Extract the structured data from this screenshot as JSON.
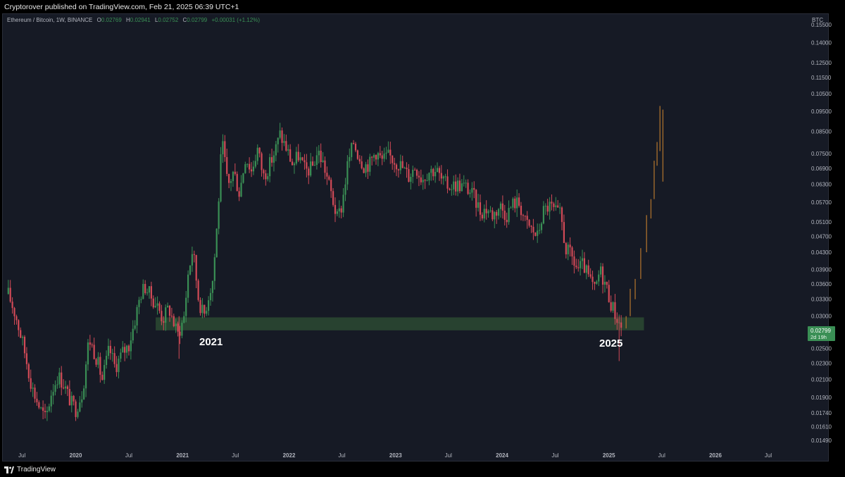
{
  "header": {
    "published": "Cryptorover published on TradingView.com, Feb 21, 2025 06:39 UTC+1"
  },
  "legend": {
    "symbol": "Ethereum / Bitcoin, 1W, BINANCE",
    "o_label": "O",
    "o_value": "0.02769",
    "h_label": "H",
    "h_value": "0.02941",
    "l_label": "L",
    "l_value": "0.02752",
    "c_label": "C",
    "c_value": "0.02799",
    "change": "+0.00031 (+1.12%)"
  },
  "price_axis": {
    "unit": "BTC",
    "ticks": [
      "0.15500",
      "0.14000",
      "0.12500",
      "0.11500",
      "0.10500",
      "0.09500",
      "0.08500",
      "0.07500",
      "0.06900",
      "0.06300",
      "0.05700",
      "0.05100",
      "0.04700",
      "0.04300",
      "0.03900",
      "0.03600",
      "0.03300",
      "0.03000",
      "0.02500",
      "0.02300",
      "0.02100",
      "0.01900",
      "0.01740",
      "0.01610",
      "0.01490"
    ],
    "current_price": "0.02799",
    "countdown": "2d 19h"
  },
  "time_axis": {
    "labels": [
      "Jul",
      "2020",
      "Jul",
      "2021",
      "Jul",
      "2022",
      "Jul",
      "2023",
      "Jul",
      "2024",
      "Jul",
      "2025",
      "Jul",
      "2026",
      "Jul"
    ]
  },
  "annotations": {
    "left_year": "2021",
    "right_year": "2025"
  },
  "footer": {
    "brand": "TradingView"
  },
  "colors": {
    "up": "#3a8f55",
    "down": "#d24a57",
    "projection": "#a06a2c",
    "support_zone": "#2b4a33",
    "background": "#161a25"
  },
  "chart_data": {
    "type": "candlestick",
    "title": "Ethereum / Bitcoin, 1W, BINANCE",
    "scale": "log",
    "ylim": [
      0.0145,
      0.158
    ],
    "x_range": [
      "2019-05",
      "2026-11"
    ],
    "support_zone": {
      "low": 0.0277,
      "high": 0.0298,
      "from": "2020-10",
      "to": "2025-05"
    },
    "path": [
      [
        "2019-05-15",
        0.034
      ],
      [
        "2019-06-10",
        0.03
      ],
      [
        "2019-07-05",
        0.0255
      ],
      [
        "2019-08-05",
        0.02
      ],
      [
        "2019-09-01",
        0.0178
      ],
      [
        "2019-09-20",
        0.0168
      ],
      [
        "2019-10-10",
        0.0196
      ],
      [
        "2019-11-01",
        0.0215
      ],
      [
        "2019-11-20",
        0.0205
      ],
      [
        "2019-12-15",
        0.0185
      ],
      [
        "2020-01-01",
        0.0178
      ],
      [
        "2020-01-25",
        0.0197
      ],
      [
        "2020-02-15",
        0.0265
      ],
      [
        "2020-03-10",
        0.024
      ],
      [
        "2020-04-01",
        0.021
      ],
      [
        "2020-04-25",
        0.025
      ],
      [
        "2020-05-15",
        0.0225
      ],
      [
        "2020-06-10",
        0.0245
      ],
      [
        "2020-07-01",
        0.0255
      ],
      [
        "2020-07-20",
        0.029
      ],
      [
        "2020-08-10",
        0.034
      ],
      [
        "2020-08-25",
        0.0355
      ],
      [
        "2020-09-15",
        0.0335
      ],
      [
        "2020-10-10",
        0.0315
      ],
      [
        "2020-10-25",
        0.0295
      ],
      [
        "2020-11-15",
        0.0315
      ],
      [
        "2020-12-15",
        0.027
      ],
      [
        "2021-01-05",
        0.0295
      ],
      [
        "2021-01-20",
        0.038
      ],
      [
        "2021-02-05",
        0.044
      ],
      [
        "2021-02-25",
        0.033
      ],
      [
        "2021-03-15",
        0.03
      ],
      [
        "2021-04-01",
        0.034
      ],
      [
        "2021-04-15",
        0.037
      ],
      [
        "2021-05-01",
        0.052
      ],
      [
        "2021-05-12",
        0.072
      ],
      [
        "2021-05-20",
        0.078
      ],
      [
        "2021-06-05",
        0.062
      ],
      [
        "2021-06-25",
        0.068
      ],
      [
        "2021-07-15",
        0.06
      ],
      [
        "2021-08-05",
        0.074
      ],
      [
        "2021-08-25",
        0.068
      ],
      [
        "2021-09-15",
        0.077
      ],
      [
        "2021-10-05",
        0.066
      ],
      [
        "2021-10-25",
        0.07
      ],
      [
        "2021-11-15",
        0.0765
      ],
      [
        "2021-12-01",
        0.0835
      ],
      [
        "2021-12-20",
        0.078
      ],
      [
        "2022-01-15",
        0.07
      ],
      [
        "2022-02-01",
        0.0745
      ],
      [
        "2022-02-25",
        0.068
      ],
      [
        "2022-03-20",
        0.069
      ],
      [
        "2022-04-10",
        0.076
      ],
      [
        "2022-05-01",
        0.07
      ],
      [
        "2022-05-25",
        0.06
      ],
      [
        "2022-06-15",
        0.052
      ],
      [
        "2022-07-01",
        0.056
      ],
      [
        "2022-07-20",
        0.07
      ],
      [
        "2022-08-10",
        0.08
      ],
      [
        "2022-08-25",
        0.075
      ],
      [
        "2022-09-15",
        0.07
      ],
      [
        "2022-10-05",
        0.071
      ],
      [
        "2022-10-25",
        0.076
      ],
      [
        "2022-11-15",
        0.072
      ],
      [
        "2022-12-10",
        0.074
      ],
      [
        "2022-12-30",
        0.072
      ],
      [
        "2023-01-20",
        0.07
      ],
      [
        "2023-02-15",
        0.066
      ],
      [
        "2023-03-10",
        0.07
      ],
      [
        "2023-04-01",
        0.065
      ],
      [
        "2023-04-25",
        0.068
      ],
      [
        "2023-05-20",
        0.0685
      ],
      [
        "2023-06-10",
        0.064
      ],
      [
        "2023-07-01",
        0.0625
      ],
      [
        "2023-08-01",
        0.063
      ],
      [
        "2023-09-01",
        0.062
      ],
      [
        "2023-09-25",
        0.059
      ],
      [
        "2023-10-20",
        0.054
      ],
      [
        "2023-11-10",
        0.055
      ],
      [
        "2023-12-01",
        0.053
      ],
      [
        "2023-12-25",
        0.056
      ],
      [
        "2024-01-15",
        0.053
      ],
      [
        "2024-02-10",
        0.057
      ],
      [
        "2024-03-01",
        0.0565
      ],
      [
        "2024-03-20",
        0.051
      ],
      [
        "2024-04-10",
        0.049
      ],
      [
        "2024-05-01",
        0.047
      ],
      [
        "2024-05-20",
        0.054
      ],
      [
        "2024-06-10",
        0.056
      ],
      [
        "2024-06-30",
        0.054
      ],
      [
        "2024-07-20",
        0.053
      ],
      [
        "2024-08-05",
        0.044
      ],
      [
        "2024-08-25",
        0.042
      ],
      [
        "2024-09-15",
        0.039
      ],
      [
        "2024-10-05",
        0.04
      ],
      [
        "2024-10-25",
        0.037
      ],
      [
        "2024-11-15",
        0.0345
      ],
      [
        "2024-12-01",
        0.039
      ],
      [
        "2024-12-20",
        0.036
      ],
      [
        "2025-01-10",
        0.032
      ],
      [
        "2025-01-30",
        0.0295
      ],
      [
        "2025-02-15",
        0.028
      ]
    ],
    "projection": [
      [
        "2025-03-01",
        0.028,
        0.03
      ],
      [
        "2025-03-15",
        0.03,
        0.035
      ],
      [
        "2025-04-01",
        0.033,
        0.037
      ],
      [
        "2025-04-20",
        0.037,
        0.044
      ],
      [
        "2025-05-10",
        0.043,
        0.053
      ],
      [
        "2025-05-25",
        0.052,
        0.058
      ],
      [
        "2025-06-05",
        0.058,
        0.072
      ],
      [
        "2025-06-15",
        0.07,
        0.08
      ],
      [
        "2025-06-25",
        0.076,
        0.098
      ],
      [
        "2025-07-05",
        0.064,
        0.096
      ]
    ]
  }
}
